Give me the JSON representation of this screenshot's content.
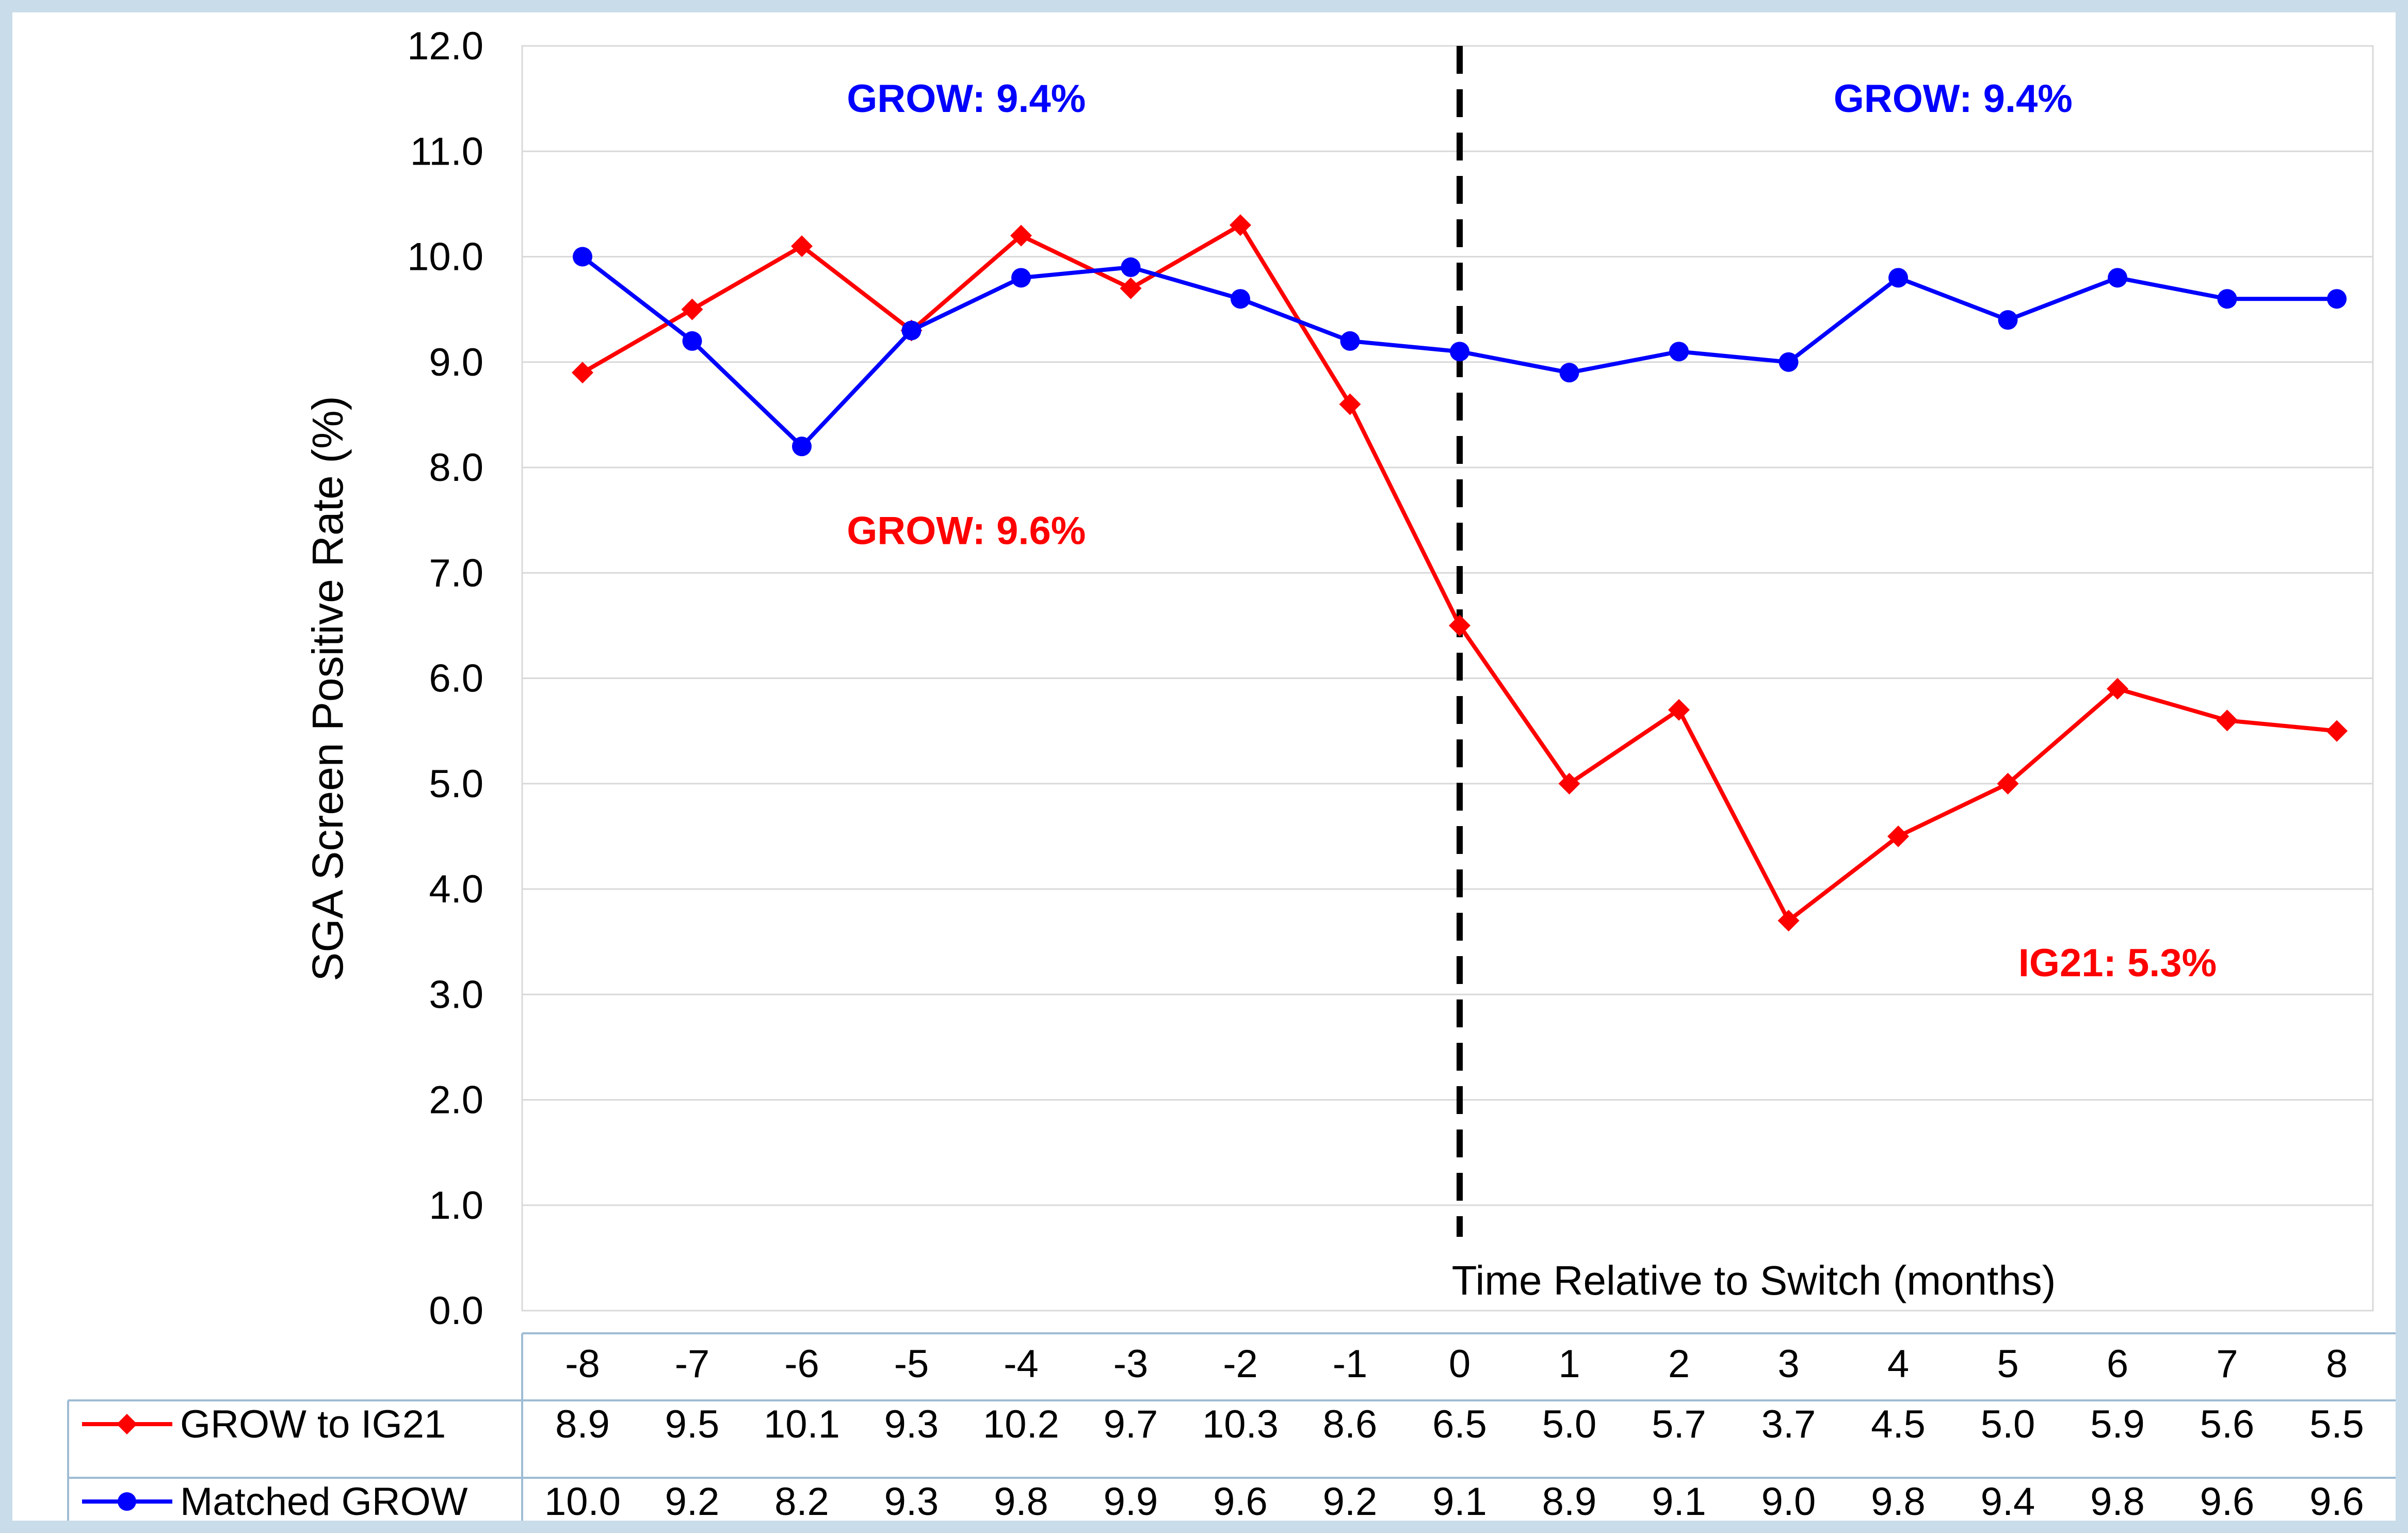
{
  "chart_data": {
    "type": "line",
    "ylabel": "SGA Screen Positive Rate (%)",
    "xlabel": "Time Relative to Switch (months)",
    "ylim": [
      0,
      12
    ],
    "y_ticks": [
      "0.0",
      "1.0",
      "2.0",
      "3.0",
      "4.0",
      "5.0",
      "6.0",
      "7.0",
      "8.0",
      "9.0",
      "10.0",
      "11.0",
      "12.0"
    ],
    "x": [
      "-8",
      "-7",
      "-6",
      "-5",
      "-4",
      "-3",
      "-2",
      "-1",
      "0",
      "1",
      "2",
      "3",
      "4",
      "5",
      "6",
      "7",
      "8"
    ],
    "grid": "horizontal",
    "switch_marker": "0",
    "series": [
      {
        "name": "GROW to IG21",
        "color": "#ff0000",
        "marker": "diamond",
        "values": [
          8.9,
          9.5,
          10.1,
          9.3,
          10.2,
          9.7,
          10.3,
          8.6,
          6.5,
          5.0,
          5.7,
          3.7,
          4.5,
          5.0,
          5.9,
          5.6,
          5.5
        ],
        "labels": [
          "8.9",
          "9.5",
          "10.1",
          "9.3",
          "10.2",
          "9.7",
          "10.3",
          "8.6",
          "6.5",
          "5.0",
          "5.7",
          "3.7",
          "4.5",
          "5.0",
          "5.9",
          "5.6",
          "5.5"
        ]
      },
      {
        "name": "Matched GROW",
        "color": "#0000ff",
        "marker": "circle",
        "values": [
          10.0,
          9.2,
          8.2,
          9.3,
          9.8,
          9.9,
          9.6,
          9.2,
          9.1,
          8.9,
          9.1,
          9.0,
          9.8,
          9.4,
          9.8,
          9.6,
          9.6
        ],
        "labels": [
          "10.0",
          "9.2",
          "8.2",
          "9.3",
          "9.8",
          "9.9",
          "9.6",
          "9.2",
          "9.1",
          "8.9",
          "9.1",
          "9.0",
          "9.8",
          "9.4",
          "9.8",
          "9.6",
          "9.6"
        ]
      }
    ],
    "annotations": [
      {
        "text": "GROW:  9.4%",
        "color": "#0000ff",
        "x": -4.5,
        "y": 11.5
      },
      {
        "text": "GROW:  9.4%",
        "color": "#0000ff",
        "x": 4.5,
        "y": 11.5
      },
      {
        "text": "GROW: 9.6%",
        "color": "#ff0000",
        "x": -4.5,
        "y": 7.4
      },
      {
        "text": "IG21: 5.3%",
        "color": "#ff0000",
        "x": 6,
        "y": 3.3
      }
    ]
  }
}
